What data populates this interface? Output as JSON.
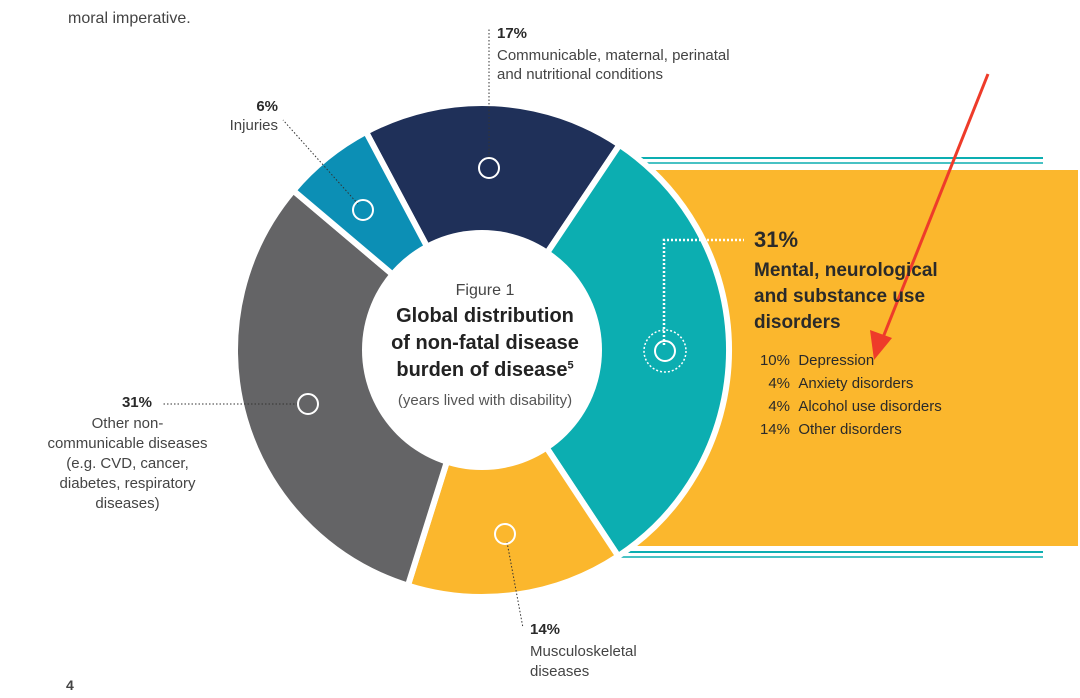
{
  "page": {
    "top_text": "moral imperative.",
    "page_number": "4"
  },
  "chart_data": {
    "type": "pie",
    "donut": true,
    "title_lines": [
      "Global distribution",
      "of non-fatal disease",
      "burden of disease"
    ],
    "figure_label": "Figure 1",
    "title_superscript": "5",
    "subtitle": "(years lived with disability)",
    "slices": [
      {
        "key": "communicable",
        "percent": 17,
        "label_text": "17%",
        "name_lines": [
          "Communicable, maternal, perinatal",
          "and nutritional conditions"
        ],
        "color": "#1f3059"
      },
      {
        "key": "mental",
        "percent": 31,
        "label_text": "31%",
        "name_lines": [
          "Mental, neurological",
          "and substance use",
          "disorders"
        ],
        "color": "#0caeb1"
      },
      {
        "key": "musculoskeletal",
        "percent": 14,
        "label_text": "14%",
        "name_lines": [
          "Musculoskeletal",
          "diseases"
        ],
        "color": "#fbb72d"
      },
      {
        "key": "other_ncd",
        "percent": 31,
        "label_text": "31%",
        "name_lines": [
          "Other non-",
          "communicable diseases",
          "(e.g. CVD, cancer,",
          "diabetes, respiratory",
          "diseases)"
        ],
        "color": "#646466"
      },
      {
        "key": "injuries",
        "percent": 6,
        "label_text": "6%",
        "name_lines": [
          "Injuries"
        ],
        "color": "#0c8fb5"
      }
    ],
    "breakdown": {
      "parent": "mental",
      "items": [
        {
          "value": "10%",
          "label": "Depression"
        },
        {
          "value": "4%",
          "label": "Anxiety disorders"
        },
        {
          "value": "4%",
          "label": "Alcohol use disorders"
        },
        {
          "value": "14%",
          "label": "Other disorders"
        }
      ]
    },
    "colors": {
      "highlight": "#fbb72d",
      "accent_lines": "#0caeb1",
      "arrow": "#ee3b2a"
    }
  }
}
